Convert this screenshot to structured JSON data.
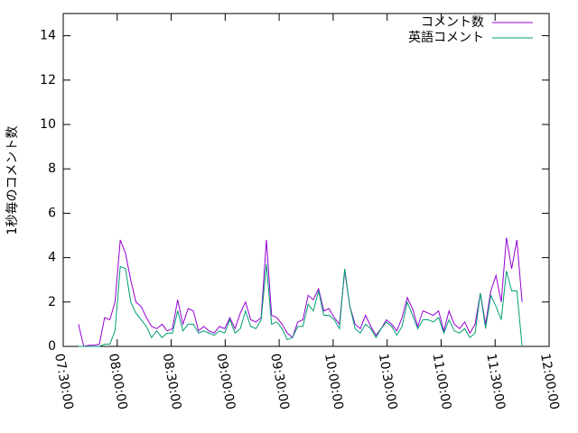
{
  "chart_data": {
    "type": "line",
    "y_label": "1秒毎のコメント数",
    "x": [
      "07:38:30",
      "07:41:24",
      "07:44:18",
      "07:47:12",
      "07:50:06",
      "07:53:00",
      "07:55:54",
      "07:58:48",
      "08:01:42",
      "08:04:36",
      "08:07:30",
      "08:10:24",
      "08:13:18",
      "08:16:12",
      "08:19:06",
      "08:22:00",
      "08:24:54",
      "08:27:48",
      "08:30:42",
      "08:33:36",
      "08:36:30",
      "08:39:24",
      "08:42:18",
      "08:45:12",
      "08:48:06",
      "08:51:00",
      "08:53:54",
      "08:56:48",
      "08:59:42",
      "09:02:36",
      "09:05:30",
      "09:08:24",
      "09:11:18",
      "09:14:12",
      "09:17:06",
      "09:20:00",
      "09:22:54",
      "09:25:48",
      "09:28:42",
      "09:31:36",
      "09:34:30",
      "09:37:24",
      "09:40:18",
      "09:43:12",
      "09:46:06",
      "09:49:00",
      "09:51:54",
      "09:54:48",
      "09:57:42",
      "10:00:36",
      "10:03:30",
      "10:06:24",
      "10:09:18",
      "10:12:12",
      "10:15:06",
      "10:18:00",
      "10:20:54",
      "10:23:48",
      "10:26:42",
      "10:29:36",
      "10:32:30",
      "10:35:24",
      "10:38:18",
      "10:41:12",
      "10:44:06",
      "10:47:00",
      "10:49:54",
      "10:52:48",
      "10:55:42",
      "10:58:36",
      "11:01:30",
      "11:04:24",
      "11:07:18",
      "11:10:12",
      "11:13:06",
      "11:16:00",
      "11:18:54",
      "11:21:48",
      "11:24:42",
      "11:27:36",
      "11:30:30",
      "11:33:24",
      "11:36:18",
      "11:39:12",
      "11:42:06",
      "11:45:00"
    ],
    "series": [
      {
        "name": "コメント数",
        "color": "#9400d3",
        "values": [
          1.0,
          0.0,
          0.05,
          0.05,
          0.1,
          1.3,
          1.2,
          2.0,
          4.8,
          4.2,
          3.0,
          2.0,
          1.8,
          1.3,
          0.9,
          0.8,
          1.0,
          0.7,
          0.8,
          2.1,
          1.0,
          1.7,
          1.6,
          0.7,
          0.9,
          0.7,
          0.6,
          0.9,
          0.8,
          1.3,
          0.8,
          1.5,
          2.0,
          1.2,
          1.1,
          1.3,
          4.8,
          1.4,
          1.3,
          1.0,
          0.6,
          0.4,
          1.1,
          1.2,
          2.3,
          2.1,
          2.6,
          1.6,
          1.7,
          1.3,
          1.0,
          3.4,
          1.8,
          1.0,
          0.8,
          1.4,
          0.9,
          0.5,
          0.8,
          1.2,
          1.0,
          0.7,
          1.3,
          2.2,
          1.7,
          0.9,
          1.6,
          1.5,
          1.4,
          1.6,
          0.7,
          1.6,
          1.0,
          0.8,
          1.1,
          0.6,
          1.0,
          2.4,
          1.0,
          2.5,
          3.2,
          2.0,
          4.9,
          3.5,
          4.8,
          2.0
        ]
      },
      {
        "name": "英語コメント",
        "color": "#009e73",
        "values": [
          0,
          0,
          0,
          0,
          0,
          0.1,
          0.1,
          0.7,
          3.6,
          3.5,
          2.0,
          1.5,
          1.2,
          0.9,
          0.4,
          0.7,
          0.4,
          0.6,
          0.6,
          1.6,
          0.7,
          1.0,
          1.0,
          0.6,
          0.7,
          0.6,
          0.5,
          0.7,
          0.6,
          1.2,
          0.6,
          0.8,
          1.6,
          0.9,
          0.8,
          1.2,
          3.7,
          1.0,
          1.1,
          0.8,
          0.3,
          0.4,
          0.9,
          0.9,
          1.9,
          1.6,
          2.5,
          1.4,
          1.4,
          1.2,
          0.8,
          3.5,
          1.8,
          0.8,
          0.6,
          1.0,
          0.8,
          0.4,
          0.8,
          1.1,
          0.9,
          0.5,
          0.9,
          2.0,
          1.4,
          0.8,
          1.2,
          1.2,
          1.1,
          1.3,
          0.6,
          1.2,
          0.7,
          0.6,
          0.8,
          0.4,
          0.6,
          2.4,
          0.8,
          2.3,
          1.8,
          1.2,
          3.4,
          2.5,
          2.5,
          0.0
        ]
      }
    ],
    "xlim": [
      "07:30:00",
      "12:00:00"
    ],
    "xticks": [
      "07:30:00",
      "08:00:00",
      "08:30:00",
      "09:00:00",
      "09:30:00",
      "10:00:00",
      "10:30:00",
      "11:00:00",
      "11:30:00",
      "12:00:00"
    ],
    "ylim": [
      0,
      15
    ],
    "yticks": [
      0,
      2,
      4,
      6,
      8,
      10,
      12,
      14
    ],
    "legend": "top-right"
  }
}
